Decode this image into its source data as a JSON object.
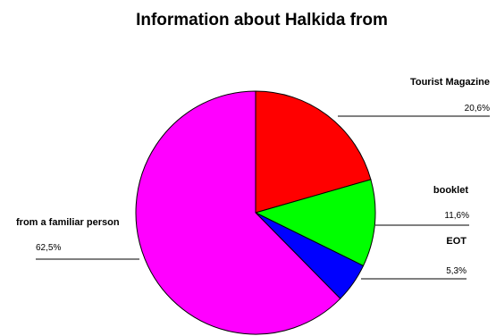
{
  "chart_data": {
    "type": "pie",
    "title": "Information about Halkida from",
    "slices": [
      {
        "label": "Tourist Magazine",
        "value": 20.6,
        "value_label": "20,6%",
        "color": "#ff0000"
      },
      {
        "label": "booklet",
        "value": 11.6,
        "value_label": "11,6%",
        "color": "#00ff00"
      },
      {
        "label": "EOT",
        "value": 5.3,
        "value_label": "5,3%",
        "color": "#0000ff"
      },
      {
        "label": "from a familiar person",
        "value": 62.5,
        "value_label": "62,5%",
        "color": "#ff00ff"
      }
    ],
    "start_angle": "12 o'clock",
    "direction": "clockwise",
    "legend": "none"
  }
}
